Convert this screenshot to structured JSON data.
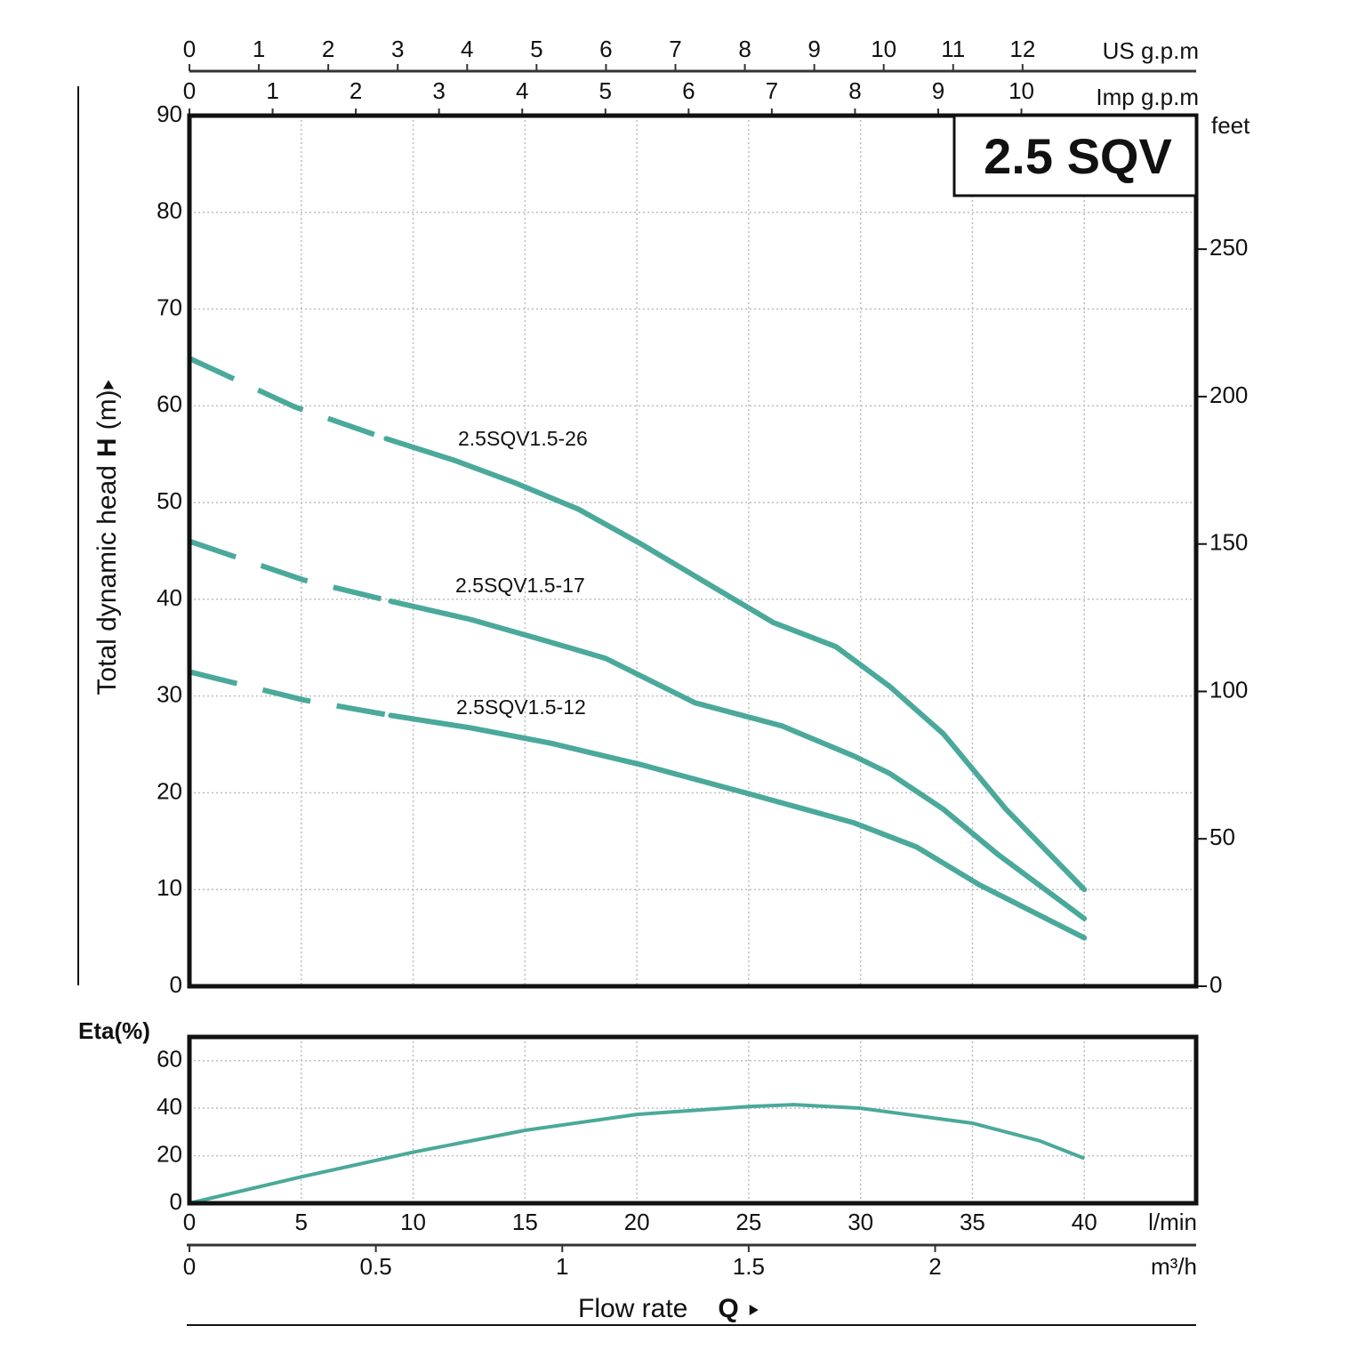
{
  "chart_data": [
    {
      "type": "line",
      "title": "2.5 SQV",
      "ylabel": {
        "before": "Total dynamic head",
        "symbol": "H",
        "after": "(m)"
      },
      "xlim": [
        0,
        45
      ],
      "ylim": [
        0,
        90
      ],
      "yticks": [
        0,
        10,
        20,
        30,
        40,
        50,
        60,
        70,
        80,
        90
      ],
      "y2label": "feet",
      "y2lim": [
        0,
        295.3
      ],
      "y2ticks": [
        0,
        50,
        100,
        150,
        200,
        250
      ],
      "grid": true,
      "top_axes": [
        {
          "label": "US g.p.m",
          "lim": [
            0,
            14.5
          ],
          "ticks": [
            0,
            1,
            2,
            3,
            4,
            5,
            6,
            7,
            8,
            9,
            10,
            11,
            12
          ]
        },
        {
          "label": "Imp g.p.m",
          "lim": [
            0,
            12.1
          ],
          "ticks": [
            0,
            1,
            2,
            3,
            4,
            5,
            6,
            7,
            8,
            9,
            10
          ]
        }
      ],
      "series": [
        {
          "name": "2.5SQV1.5-26",
          "color": "#4aa99a",
          "dashed_until": 8.8,
          "x": [
            0,
            4.7,
            8.8,
            11.8,
            14.6,
            17.4,
            20.2,
            23.4,
            26.1,
            28.9,
            31.3,
            33.7,
            36.5,
            40
          ],
          "values": [
            64.9,
            59.9,
            56.6,
            54.4,
            52.0,
            49.3,
            45.7,
            41.3,
            37.6,
            35.1,
            31.0,
            26.1,
            18.3,
            10.0
          ]
        },
        {
          "name": "2.5SQV1.5-17",
          "color": "#4aa99a",
          "dashed_until": 9.0,
          "x": [
            0,
            5.1,
            9.0,
            12.6,
            15.8,
            18.6,
            22.6,
            26.5,
            29.7,
            31.3,
            33.7,
            36.1,
            40
          ],
          "values": [
            46.0,
            42.0,
            39.8,
            37.9,
            35.8,
            33.9,
            29.3,
            26.9,
            23.8,
            22.0,
            18.3,
            13.7,
            7.0
          ]
        },
        {
          "name": "2.5SQV1.5-12",
          "color": "#4aa99a",
          "dashed_until": 9.0,
          "x": [
            0,
            5.1,
            9.0,
            12.6,
            16.2,
            20.2,
            25.0,
            29.7,
            32.5,
            35.3,
            40
          ],
          "values": [
            32.5,
            29.6,
            28.0,
            26.7,
            25.1,
            22.9,
            19.9,
            16.9,
            14.4,
            10.5,
            5.0
          ]
        }
      ]
    },
    {
      "type": "line",
      "ylabel": "Eta(%)",
      "xlim": [
        0,
        45
      ],
      "ylim": [
        0,
        70
      ],
      "yticks": [
        0,
        20,
        40,
        60
      ],
      "grid": true,
      "xticks": [
        0,
        5,
        10,
        15,
        20,
        25,
        30,
        35,
        40
      ],
      "xunit": "l/min",
      "x2unit": "m³/h",
      "x2lim": [
        0,
        2.7
      ],
      "x2ticks": [
        0,
        0.5,
        1,
        1.5,
        2
      ],
      "xlabel": {
        "before": "Flow rate",
        "symbol": "Q"
      },
      "series": [
        {
          "color": "#4aa99a",
          "x": [
            0,
            5,
            10,
            15,
            20,
            25,
            27,
            30,
            35,
            38,
            40
          ],
          "values": [
            0,
            11.1,
            21.5,
            30.7,
            37.4,
            40.7,
            41.5,
            40.0,
            33.7,
            26.3,
            18.9
          ]
        }
      ]
    }
  ]
}
